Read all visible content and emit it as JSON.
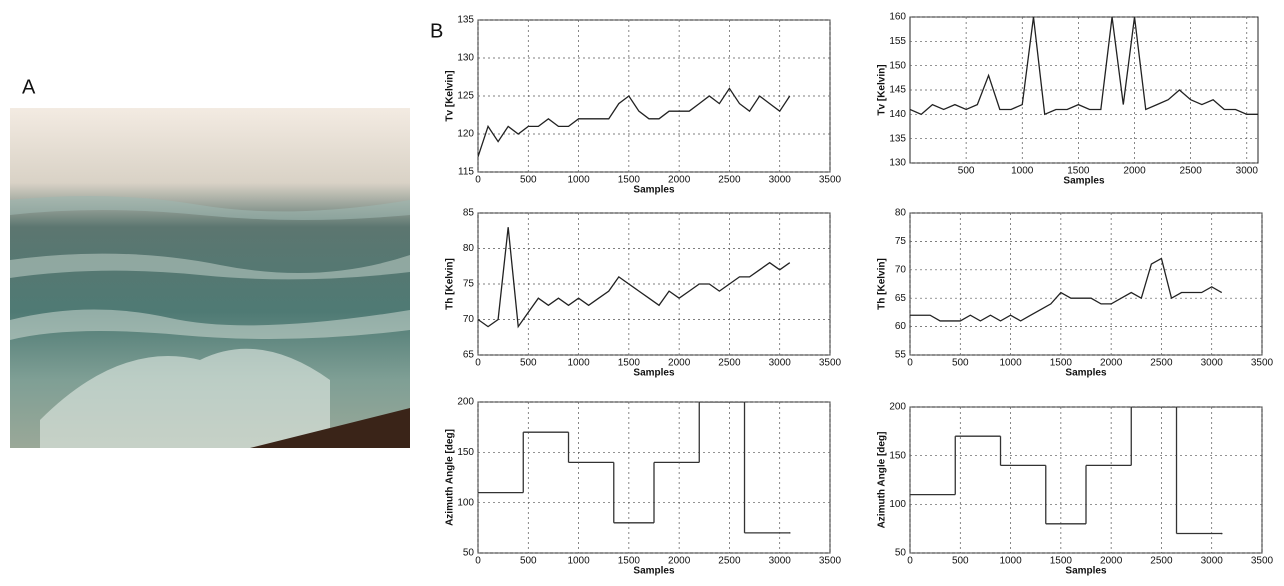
{
  "panel_labels": [
    "A",
    "B"
  ],
  "chart_data": [
    {
      "type": "line",
      "xlabel": "Samples",
      "ylabel": "Tv [Kelvin]",
      "xlim": [
        0,
        3500
      ],
      "ylim": [
        115,
        135
      ],
      "xticks": [
        0,
        500,
        1000,
        1500,
        2000,
        2500,
        3000,
        3500
      ],
      "yticks": [
        115,
        120,
        125,
        130,
        135
      ],
      "grid": true,
      "x": [
        0,
        100,
        200,
        300,
        400,
        500,
        600,
        700,
        800,
        900,
        1000,
        1100,
        1200,
        1300,
        1400,
        1500,
        1600,
        1700,
        1800,
        1900,
        2000,
        2100,
        2200,
        2300,
        2400,
        2500,
        2600,
        2700,
        2800,
        2900,
        3000,
        3100
      ],
      "series": [
        {
          "color": "#222222",
          "values": [
            117,
            121,
            119,
            121,
            120,
            121,
            121,
            122,
            121,
            121,
            122,
            122,
            122,
            122,
            124,
            125,
            123,
            122,
            122,
            123,
            123,
            123,
            124,
            125,
            124,
            126,
            124,
            123,
            125,
            124,
            123,
            125
          ]
        }
      ]
    },
    {
      "type": "line",
      "xlabel": "Samples",
      "ylabel": "Tv [Kelvin]",
      "xlim": [
        0,
        3100
      ],
      "ylim": [
        130,
        160
      ],
      "xticks": [
        500,
        1000,
        1500,
        2000,
        2500,
        3000
      ],
      "yticks": [
        130,
        135,
        140,
        145,
        150,
        155,
        160
      ],
      "grid": true,
      "x": [
        0,
        100,
        200,
        300,
        400,
        500,
        600,
        700,
        800,
        900,
        1000,
        1100,
        1200,
        1300,
        1400,
        1500,
        1600,
        1700,
        1800,
        1900,
        2000,
        2100,
        2200,
        2300,
        2400,
        2500,
        2600,
        2700,
        2800,
        2900,
        3000,
        3100
      ],
      "series": [
        {
          "color": "#222222",
          "values": [
            141,
            140,
            142,
            141,
            142,
            141,
            142,
            148,
            141,
            141,
            142,
            160,
            140,
            141,
            141,
            142,
            141,
            141,
            160,
            142,
            160,
            141,
            142,
            143,
            145,
            143,
            142,
            143,
            141,
            141,
            140,
            140
          ]
        }
      ]
    },
    {
      "type": "line",
      "xlabel": "Samples",
      "ylabel": "Th [Kelvin]",
      "xlim": [
        0,
        3500
      ],
      "ylim": [
        65,
        85
      ],
      "xticks": [
        0,
        500,
        1000,
        1500,
        2000,
        2500,
        3000,
        3500
      ],
      "yticks": [
        65,
        70,
        75,
        80,
        85
      ],
      "grid": true,
      "x": [
        0,
        100,
        200,
        300,
        400,
        500,
        600,
        700,
        800,
        900,
        1000,
        1100,
        1200,
        1300,
        1400,
        1500,
        1600,
        1700,
        1800,
        1900,
        2000,
        2100,
        2200,
        2300,
        2400,
        2500,
        2600,
        2700,
        2800,
        2900,
        3000,
        3100
      ],
      "series": [
        {
          "color": "#222222",
          "values": [
            70,
            69,
            70,
            83,
            69,
            71,
            73,
            72,
            73,
            72,
            73,
            72,
            73,
            74,
            76,
            75,
            74,
            73,
            72,
            74,
            73,
            74,
            75,
            75,
            74,
            75,
            76,
            76,
            77,
            78,
            77,
            78
          ]
        }
      ]
    },
    {
      "type": "line",
      "xlabel": "Samples",
      "ylabel": "Th [Kelvin]",
      "xlim": [
        0,
        3500
      ],
      "ylim": [
        55,
        80
      ],
      "xticks": [
        0,
        500,
        1000,
        1500,
        2000,
        2500,
        3000,
        3500
      ],
      "yticks": [
        55,
        60,
        65,
        70,
        75,
        80
      ],
      "grid": true,
      "x": [
        0,
        100,
        200,
        300,
        400,
        500,
        600,
        700,
        800,
        900,
        1000,
        1100,
        1200,
        1300,
        1400,
        1500,
        1600,
        1700,
        1800,
        1900,
        2000,
        2100,
        2200,
        2300,
        2400,
        2500,
        2600,
        2700,
        2800,
        2900,
        3000,
        3100
      ],
      "series": [
        {
          "color": "#222222",
          "values": [
            62,
            62,
            62,
            61,
            61,
            61,
            62,
            61,
            62,
            61,
            62,
            61,
            62,
            63,
            64,
            66,
            65,
            65,
            65,
            64,
            64,
            65,
            66,
            65,
            71,
            72,
            65,
            66,
            66,
            66,
            67,
            66
          ]
        }
      ]
    },
    {
      "type": "step",
      "xlabel": "Samples",
      "ylabel": "Azimuth Angle [deg]",
      "xlim": [
        0,
        3500
      ],
      "ylim": [
        50,
        200
      ],
      "xticks": [
        0,
        500,
        1000,
        1500,
        2000,
        2500,
        3000,
        3500
      ],
      "yticks": [
        50,
        100,
        150,
        200
      ],
      "grid": true,
      "x": [
        0,
        450,
        900,
        1350,
        1750,
        2200,
        2650,
        3100
      ],
      "series": [
        {
          "color": "#333333",
          "values": [
            110,
            170,
            140,
            80,
            140,
            200,
            70,
            70
          ]
        }
      ]
    },
    {
      "type": "step",
      "xlabel": "Samples",
      "ylabel": "Azimuth Angle [deg]",
      "xlim": [
        0,
        3500
      ],
      "ylim": [
        50,
        200
      ],
      "xticks": [
        0,
        500,
        1000,
        1500,
        2000,
        2500,
        3000,
        3500
      ],
      "yticks": [
        50,
        100,
        150,
        200
      ],
      "grid": true,
      "x": [
        0,
        450,
        900,
        1350,
        1750,
        2200,
        2650,
        3100
      ],
      "series": [
        {
          "color": "#333333",
          "values": [
            110,
            170,
            140,
            80,
            140,
            200,
            70,
            70
          ]
        }
      ]
    }
  ]
}
